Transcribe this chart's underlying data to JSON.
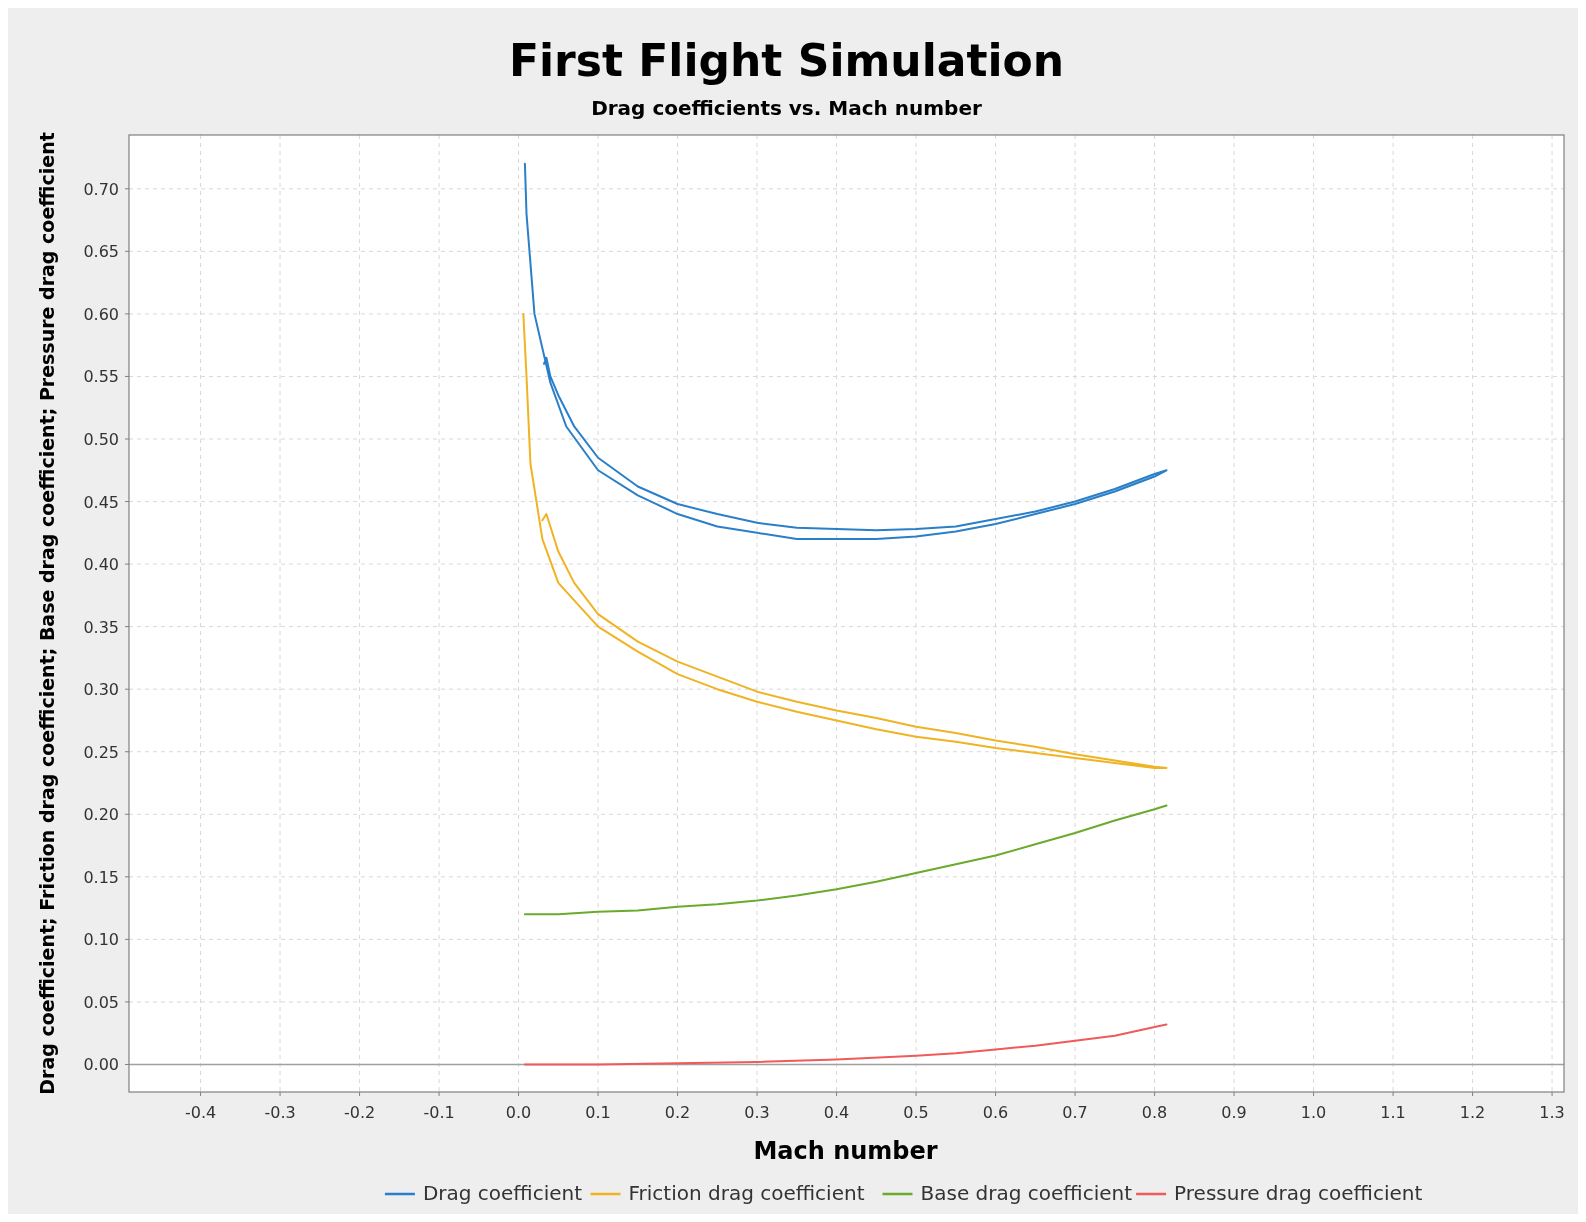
{
  "chart_data": {
    "type": "line",
    "title": "First Flight Simulation",
    "subtitle": "Drag coefficients vs. Mach number",
    "xlabel": "Mach number",
    "ylabel": "Drag coefficient; Friction drag coefficient; Base drag coefficient; Pressure drag coefficient",
    "xlim": [
      -0.49,
      1.315
    ],
    "ylim": [
      -0.022,
      0.743
    ],
    "xticks": [
      {
        "value": -0.4,
        "label": "-0.4"
      },
      {
        "value": -0.3,
        "label": "-0.3"
      },
      {
        "value": -0.2,
        "label": "-0.2"
      },
      {
        "value": -0.1,
        "label": "-0.1"
      },
      {
        "value": 0,
        "label": "0.0"
      },
      {
        "value": 0.1,
        "label": "0.1"
      },
      {
        "value": 0.2,
        "label": "0.2"
      },
      {
        "value": 0.3,
        "label": "0.3"
      },
      {
        "value": 0.4,
        "label": "0.4"
      },
      {
        "value": 0.5,
        "label": "0.5"
      },
      {
        "value": 0.6,
        "label": "0.6"
      },
      {
        "value": 0.7,
        "label": "0.7"
      },
      {
        "value": 0.8,
        "label": "0.8"
      },
      {
        "value": 0.9,
        "label": "0.9"
      },
      {
        "value": 1,
        "label": "1.0"
      },
      {
        "value": 1.1,
        "label": "1.1"
      },
      {
        "value": 1.2,
        "label": "1.2"
      },
      {
        "value": 1.3,
        "label": "1.3"
      }
    ],
    "yticks": [
      {
        "value": 0,
        "label": "0.00"
      },
      {
        "value": 0.05,
        "label": "0.05"
      },
      {
        "value": 0.1,
        "label": "0.10"
      },
      {
        "value": 0.15,
        "label": "0.15"
      },
      {
        "value": 0.2,
        "label": "0.20"
      },
      {
        "value": 0.25,
        "label": "0.25"
      },
      {
        "value": 0.3,
        "label": "0.30"
      },
      {
        "value": 0.35,
        "label": "0.35"
      },
      {
        "value": 0.4,
        "label": "0.40"
      },
      {
        "value": 0.45,
        "label": "0.45"
      },
      {
        "value": 0.5,
        "label": "0.50"
      },
      {
        "value": 0.55,
        "label": "0.55"
      },
      {
        "value": 0.6,
        "label": "0.60"
      },
      {
        "value": 0.65,
        "label": "0.65"
      },
      {
        "value": 0.7,
        "label": "0.70"
      }
    ],
    "grid": true,
    "legend": "bottom",
    "marker": "none",
    "line_style": "solid",
    "ref_lines": [
      {
        "axis": "y",
        "value": 0,
        "color": "#a0a0a0"
      }
    ],
    "series": [
      {
        "name": "Drag coefficient",
        "color": "#2a7fc9",
        "x": [
          0.008,
          0.01,
          0.02,
          0.04,
          0.06,
          0.1,
          0.15,
          0.2,
          0.25,
          0.3,
          0.35,
          0.4,
          0.45,
          0.5,
          0.55,
          0.6,
          0.65,
          0.7,
          0.75,
          0.8,
          0.815,
          0.8,
          0.75,
          0.7,
          0.65,
          0.6,
          0.55,
          0.5,
          0.45,
          0.4,
          0.35,
          0.3,
          0.25,
          0.2,
          0.15,
          0.1,
          0.07,
          0.05,
          0.04,
          0.035,
          0.032
        ],
        "values": [
          0.72,
          0.68,
          0.6,
          0.545,
          0.51,
          0.475,
          0.455,
          0.44,
          0.43,
          0.425,
          0.42,
          0.42,
          0.42,
          0.422,
          0.426,
          0.432,
          0.44,
          0.448,
          0.458,
          0.47,
          0.475,
          0.472,
          0.46,
          0.45,
          0.442,
          0.436,
          0.43,
          0.428,
          0.427,
          0.428,
          0.429,
          0.433,
          0.44,
          0.448,
          0.462,
          0.485,
          0.51,
          0.535,
          0.55,
          0.565,
          0.56
        ]
      },
      {
        "name": "Friction drag coefficient",
        "color": "#f0b323",
        "x": [
          0.006,
          0.01,
          0.015,
          0.03,
          0.05,
          0.1,
          0.15,
          0.2,
          0.25,
          0.3,
          0.35,
          0.4,
          0.45,
          0.5,
          0.55,
          0.6,
          0.65,
          0.7,
          0.75,
          0.8,
          0.815,
          0.8,
          0.75,
          0.7,
          0.65,
          0.6,
          0.55,
          0.5,
          0.45,
          0.4,
          0.35,
          0.3,
          0.25,
          0.2,
          0.15,
          0.1,
          0.07,
          0.05,
          0.04,
          0.035,
          0.03
        ],
        "values": [
          0.6,
          0.55,
          0.48,
          0.42,
          0.385,
          0.35,
          0.33,
          0.312,
          0.3,
          0.29,
          0.282,
          0.275,
          0.268,
          0.262,
          0.258,
          0.253,
          0.249,
          0.245,
          0.241,
          0.237,
          0.237,
          0.238,
          0.243,
          0.248,
          0.254,
          0.259,
          0.265,
          0.27,
          0.277,
          0.283,
          0.29,
          0.298,
          0.31,
          0.322,
          0.338,
          0.36,
          0.385,
          0.41,
          0.43,
          0.44,
          0.435
        ]
      },
      {
        "name": "Base drag coefficient",
        "color": "#6aaa2c",
        "x": [
          0.008,
          0.05,
          0.1,
          0.15,
          0.2,
          0.25,
          0.3,
          0.35,
          0.4,
          0.45,
          0.5,
          0.55,
          0.6,
          0.65,
          0.7,
          0.75,
          0.8,
          0.815
        ],
        "values": [
          0.12,
          0.12,
          0.122,
          0.123,
          0.126,
          0.128,
          0.131,
          0.135,
          0.14,
          0.146,
          0.153,
          0.16,
          0.167,
          0.176,
          0.185,
          0.195,
          0.204,
          0.207
        ]
      },
      {
        "name": "Pressure drag coefficient",
        "color": "#f05a5a",
        "x": [
          0.008,
          0.1,
          0.2,
          0.3,
          0.4,
          0.5,
          0.55,
          0.6,
          0.65,
          0.7,
          0.75,
          0.8,
          0.815
        ],
        "values": [
          0,
          0,
          0.001,
          0.002,
          0.004,
          0.007,
          0.009,
          0.012,
          0.015,
          0.019,
          0.023,
          0.03,
          0.032
        ]
      }
    ]
  }
}
